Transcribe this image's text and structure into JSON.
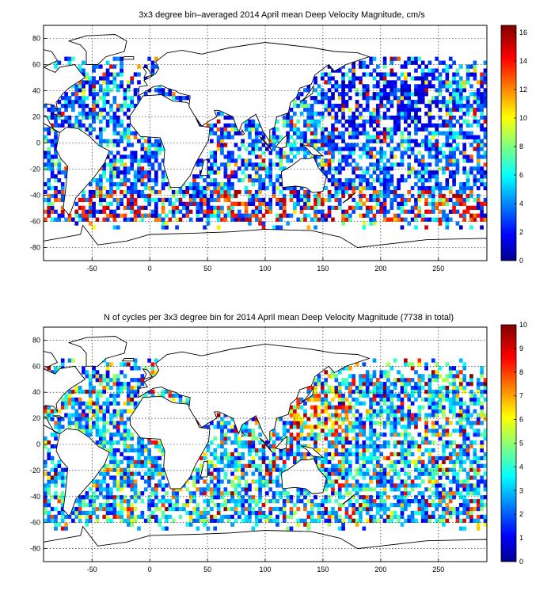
{
  "chart_data": [
    {
      "type": "heatmap",
      "title": "3x3 degree bin–averaged 2014 April mean Deep Velocity Magnitude, cm/s",
      "xlim": [
        -92,
        292
      ],
      "ylim": [
        -90,
        90
      ],
      "xticks": [
        -50,
        0,
        50,
        100,
        150,
        200,
        250
      ],
      "yticks": [
        -80,
        -60,
        -40,
        -20,
        0,
        20,
        40,
        60,
        80
      ],
      "bin_size_deg": 3,
      "grid": true,
      "colorbar": {
        "min": 0,
        "max": 16.5,
        "ticks": [
          0,
          2,
          4,
          6,
          8,
          10,
          12,
          14,
          16
        ],
        "position": "right",
        "colormap": "jet"
      },
      "value_pattern": "low",
      "seed": 17
    },
    {
      "type": "heatmap",
      "title": "N of cycles per 3x3 degree bin for 2014 April mean Deep Velocity Magnitude (7738 in total)",
      "xlim": [
        -92,
        292
      ],
      "ylim": [
        -90,
        90
      ],
      "xticks": [
        -50,
        0,
        50,
        100,
        150,
        200,
        250
      ],
      "yticks": [
        -80,
        -60,
        -40,
        -20,
        0,
        20,
        40,
        60,
        80
      ],
      "bin_size_deg": 3,
      "grid": true,
      "colorbar": {
        "min": 0,
        "max": 10,
        "ticks": [
          0,
          1,
          2,
          3,
          4,
          5,
          6,
          7,
          8,
          9,
          10
        ],
        "position": "right",
        "colormap": "jet"
      },
      "value_pattern": "counts",
      "seed": 91
    }
  ]
}
